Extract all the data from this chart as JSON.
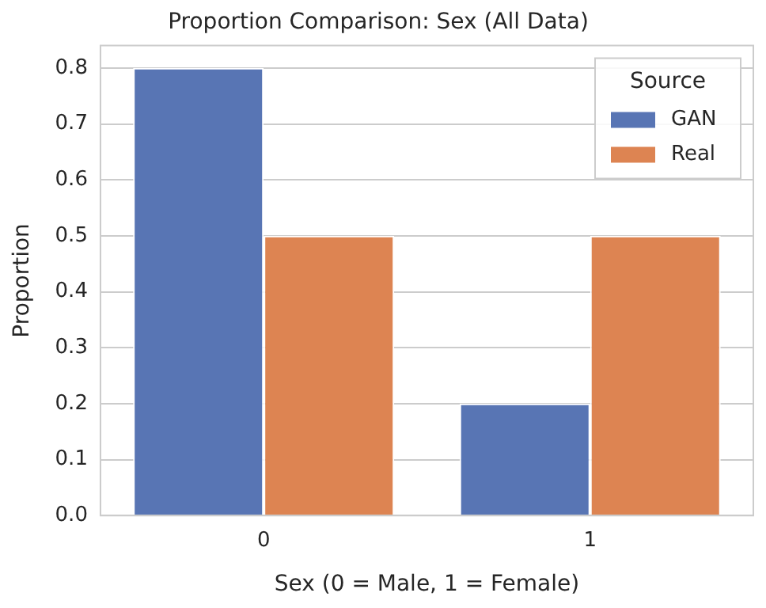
{
  "chart_data": {
    "type": "bar",
    "title": "Proportion Comparison: Sex (All Data)",
    "xlabel": "Sex (0 = Male, 1 = Female)",
    "ylabel": "Proportion",
    "legend_title": "Source",
    "categories": [
      "0",
      "1"
    ],
    "series": [
      {
        "name": "GAN",
        "color": "#5875b4",
        "values": [
          0.8,
          0.2
        ]
      },
      {
        "name": "Real",
        "color": "#dd8452",
        "values": [
          0.5,
          0.5
        ]
      }
    ],
    "ylim": [
      0,
      0.84
    ],
    "yticks": [
      {
        "value": 0,
        "label": "0.0"
      },
      {
        "value": 0.1,
        "label": "0.1"
      },
      {
        "value": 0.2,
        "label": "0.2"
      },
      {
        "value": 0.3,
        "label": "0.3"
      },
      {
        "value": 0.4,
        "label": "0.4"
      },
      {
        "value": 0.5,
        "label": "0.5"
      },
      {
        "value": 0.6,
        "label": "0.6"
      },
      {
        "value": 0.7,
        "label": "0.7"
      },
      {
        "value": 0.8,
        "label": "0.8"
      }
    ],
    "grid": "y",
    "legend": "top right"
  }
}
